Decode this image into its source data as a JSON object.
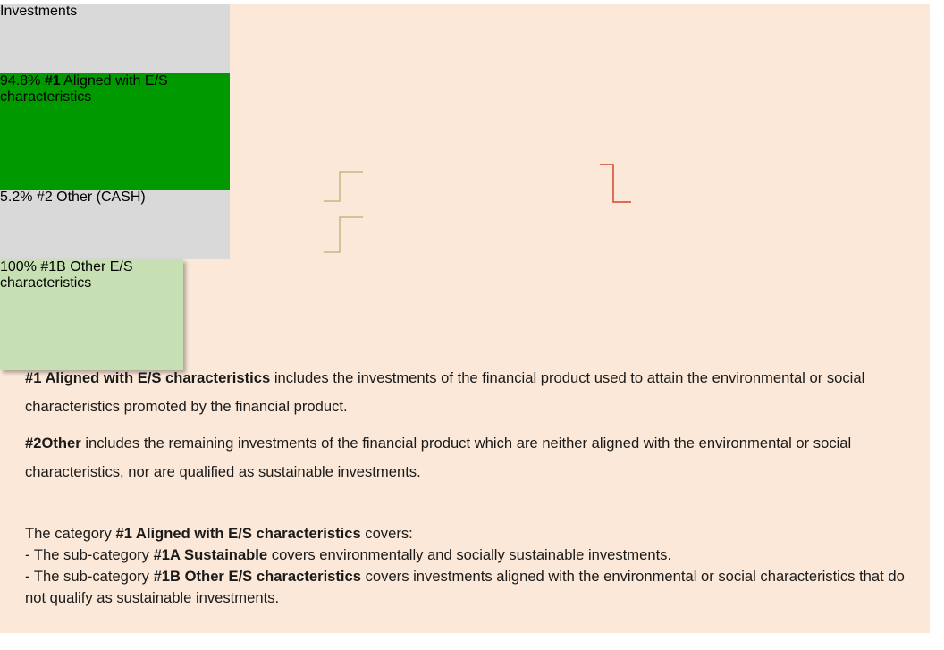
{
  "diagram": {
    "nodes": [
      {
        "parts": [
          {
            "text": "Investments"
          }
        ]
      },
      {
        "parts": [
          {
            "text": "94.8% "
          },
          {
            "text": "#1",
            "bold": true
          },
          {
            "text": " Aligned with E/S characteristics"
          }
        ]
      },
      {
        "parts": [
          {
            "text": "5.2% #2 Other (CASH)"
          }
        ]
      },
      {
        "parts": [
          {
            "text": "100% #1B Other E/S characteristics"
          }
        ]
      }
    ]
  },
  "paragraphs": [
    {
      "parts": [
        {
          "text": "#1 Aligned with E/S characteristics",
          "bold": true
        },
        {
          "text": " includes the investments of the financial product used to attain the environmental or social characteristics promoted by the financial product."
        }
      ]
    },
    {
      "parts": [
        {
          "text": "#2Other",
          "bold": true
        },
        {
          "text": " includes the remaining investments of the financial product which are neither aligned with the environmental or social characteristics, nor are qualified as sustainable investments."
        }
      ]
    },
    {
      "parts": [
        {
          "text": "The category "
        },
        {
          "text": "#1 Aligned with E/S characteristics",
          "bold": true
        },
        {
          "text": " covers:"
        }
      ]
    },
    {
      "parts": [
        {
          "text": "- The sub-category "
        },
        {
          "text": "#1A Sustainable",
          "bold": true
        },
        {
          "text": " covers environmentally and socially sustainable investments."
        }
      ]
    },
    {
      "parts": [
        {
          "text": "- The sub-category "
        },
        {
          "text": "#1B Other E/S characteristics",
          "bold": true
        },
        {
          "text": " covers investments aligned with the environmental or social characteristics that do not qualify as sustainable investments."
        }
      ]
    }
  ]
}
